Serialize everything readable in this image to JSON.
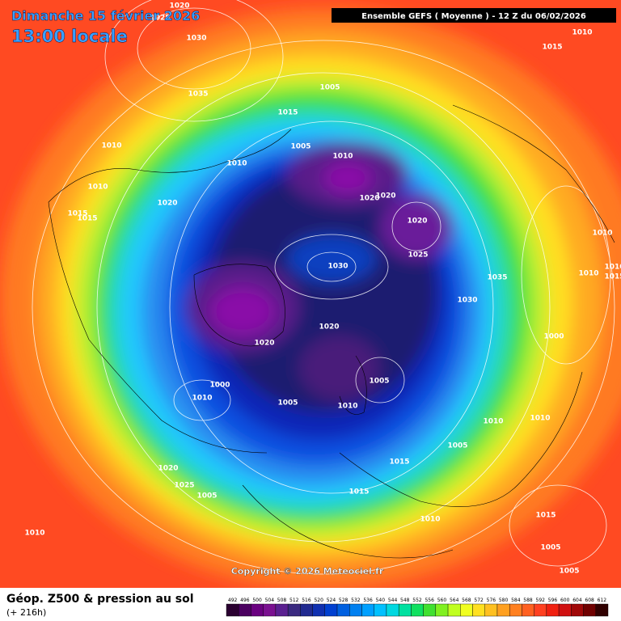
{
  "header": {
    "date": "Dimanche 15 février 2026",
    "time": "13:00 locale",
    "run": "Ensemble GEFS  ( Moyenne )  -  12 Z du 06/02/2026"
  },
  "copyright": "Copyright © 2026 Meteociel.fr",
  "footer": {
    "title": "Géop. Z500 & pression au sol",
    "lead": "(+ 216h)"
  },
  "isobar_labels": [
    "1020",
    "1025",
    "1030",
    "1035",
    "1010",
    "1015",
    "1005",
    "1015",
    "1005",
    "1010",
    "1010",
    "1010",
    "1010",
    "1020",
    "1015",
    "1015",
    "1020",
    "1020",
    "1020",
    "1025",
    "1030",
    "1035",
    "1030",
    "1010",
    "1010",
    "1010",
    "1015",
    "1020",
    "1020",
    "1000",
    "1005",
    "1000",
    "1010",
    "1005",
    "1010",
    "1010",
    "1010",
    "1005",
    "1015",
    "1020",
    "1025",
    "1005",
    "1015",
    "1010",
    "1015",
    "1010",
    "1005",
    "1005"
  ],
  "legend": {
    "labels": [
      492,
      496,
      500,
      504,
      508,
      512,
      516,
      520,
      524,
      528,
      532,
      536,
      540,
      544,
      548,
      552,
      556,
      560,
      564,
      568,
      572,
      576,
      580,
      584,
      588,
      592,
      596,
      600,
      604,
      608,
      612
    ],
    "colors": [
      "#2a0030",
      "#4b0060",
      "#6a0080",
      "#7a1090",
      "#5a2090",
      "#3a2a80",
      "#202a90",
      "#1030b0",
      "#0040d0",
      "#0060e0",
      "#0080f0",
      "#00a0ff",
      "#00c0ff",
      "#00d8e0",
      "#00e0a0",
      "#10e060",
      "#40e030",
      "#80f020",
      "#c0ff20",
      "#f0ff20",
      "#ffe020",
      "#ffc020",
      "#ffa020",
      "#ff8020",
      "#ff6020",
      "#ff4020",
      "#f02010",
      "#d01010",
      "#a00808",
      "#700000",
      "#300000"
    ]
  }
}
